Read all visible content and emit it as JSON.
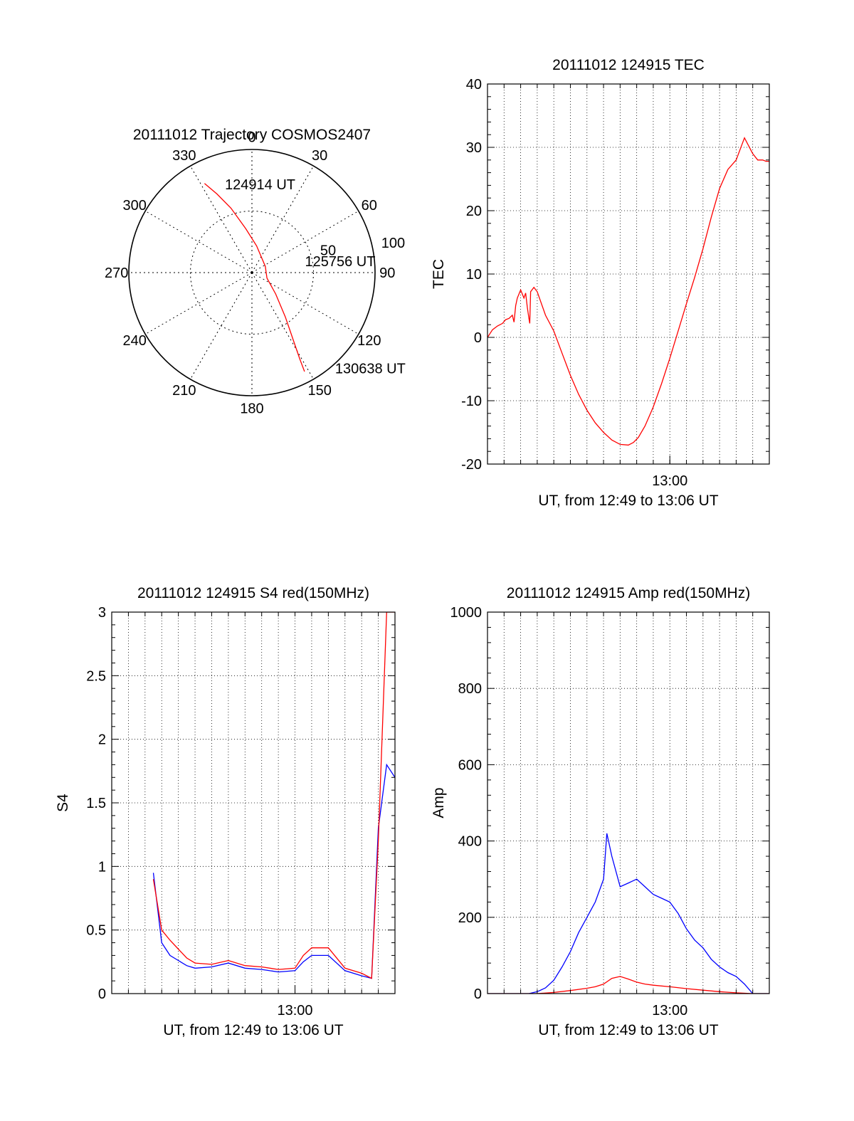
{
  "chart_data": [
    {
      "type": "polar",
      "title": "20111012 Trajectory COSMOS2407",
      "azimuth_labels": [
        "0",
        "30",
        "60",
        "90",
        "120",
        "150",
        "180",
        "210",
        "240",
        "270",
        "300",
        "330"
      ],
      "radial_labels": [
        "50",
        "100"
      ],
      "rmax": 100,
      "grid": true,
      "series": [
        {
          "color": "#ff0000",
          "points": [
            [
              332,
              82
            ],
            [
              336,
              70
            ],
            [
              342,
              55
            ],
            [
              352,
              36
            ],
            [
              10,
              22
            ],
            [
              65,
              12
            ],
            [
              110,
              13
            ],
            [
              132,
              26
            ],
            [
              143,
              45
            ],
            [
              148,
              62
            ],
            [
              151,
              80
            ],
            [
              152,
              91
            ]
          ]
        }
      ],
      "annotations": [
        {
          "text": "124914 UT",
          "az": 343,
          "r": 75
        },
        {
          "text": "125756 UT",
          "az": 78,
          "r": 44
        },
        {
          "text": "130638 UT",
          "az": 139,
          "r": 103
        }
      ]
    },
    {
      "type": "line",
      "title": "20111012 124915 TEC",
      "xlabel": "UT, from 12:49 to 13:06 UT",
      "ylabel": "TEC",
      "xlim": [
        0,
        17
      ],
      "ylim": [
        -20,
        40
      ],
      "yticks": [
        -20,
        -10,
        0,
        10,
        20,
        30,
        40
      ],
      "xticks": [
        {
          "value": 11,
          "label": "13:00"
        }
      ],
      "grid": true,
      "series": [
        {
          "color": "#ff0000",
          "x": [
            0,
            0.3,
            0.6,
            0.9,
            1.1,
            1.3,
            1.5,
            1.6,
            1.7,
            1.8,
            2.0,
            2.2,
            2.3,
            2.4,
            2.5,
            2.55,
            2.6,
            2.8,
            3.0,
            3.5,
            4,
            4.5,
            5,
            5.5,
            6,
            6.5,
            7,
            7.5,
            8,
            8.5,
            8.8,
            9.1,
            9.5,
            10,
            10.5,
            11,
            11.5,
            12,
            12.5,
            13,
            13.5,
            14,
            14.5,
            15,
            15.5,
            16,
            16.3,
            16.6,
            16.8,
            17
          ],
          "y": [
            0,
            1.2,
            1.8,
            2.2,
            2.8,
            3,
            3.5,
            2.4,
            5,
            6.2,
            7.5,
            6.2,
            7,
            4.8,
            3,
            2.2,
            7.2,
            7.9,
            7.2,
            3.5,
            1,
            -2.5,
            -6,
            -9,
            -11.5,
            -13.5,
            -15,
            -16.2,
            -16.9,
            -17,
            -16.6,
            -15.8,
            -14,
            -11,
            -7.3,
            -3.3,
            1,
            5.3,
            9.5,
            14,
            19,
            23.5,
            26.5,
            28,
            31.5,
            29,
            28,
            28,
            27.8,
            27.8
          ]
        }
      ]
    },
    {
      "type": "line",
      "title": "20111012 124915 S4 red(150MHz)",
      "xlabel": "UT, from 12:49 to 13:06 UT",
      "ylabel": "S4",
      "xlim": [
        0,
        17
      ],
      "ylim": [
        0,
        3
      ],
      "yticks": [
        0,
        0.5,
        1,
        1.5,
        2,
        2.5,
        3
      ],
      "ytick_labels": [
        "0",
        "0.5",
        "1",
        "1.5",
        "2",
        "2.5",
        "3"
      ],
      "xticks": [
        {
          "value": 11,
          "label": "13:00"
        }
      ],
      "grid": true,
      "series": [
        {
          "color": "#0000ff",
          "x": [
            2.5,
            3,
            3.5,
            4,
            4.5,
            5,
            6,
            7,
            8,
            9,
            10,
            11,
            11.5,
            12,
            13,
            14,
            15,
            15.6,
            16,
            16.5,
            17
          ],
          "y": [
            0.95,
            0.4,
            0.3,
            0.26,
            0.22,
            0.2,
            0.21,
            0.24,
            0.2,
            0.19,
            0.17,
            0.18,
            0.25,
            0.3,
            0.3,
            0.18,
            0.14,
            0.12,
            1.3,
            1.8,
            1.7
          ]
        },
        {
          "color": "#ff0000",
          "x": [
            2.5,
            3,
            3.5,
            4,
            4.5,
            5,
            6,
            7,
            8,
            9,
            10,
            11,
            11.5,
            12,
            13,
            14,
            15,
            15.6,
            16,
            16.5,
            17
          ],
          "y": [
            0.9,
            0.5,
            0.42,
            0.35,
            0.28,
            0.24,
            0.23,
            0.26,
            0.22,
            0.21,
            0.19,
            0.2,
            0.3,
            0.36,
            0.36,
            0.2,
            0.16,
            0.12,
            1.2,
            3,
            3
          ]
        }
      ]
    },
    {
      "type": "line",
      "title": "20111012 124915 Amp red(150MHz)",
      "xlabel": "UT, from 12:49 to 13:06 UT",
      "ylabel": "Amp",
      "xlim": [
        0,
        17
      ],
      "ylim": [
        0,
        1000
      ],
      "yticks": [
        0,
        200,
        400,
        600,
        800,
        1000
      ],
      "xticks": [
        {
          "value": 11,
          "label": "13:00"
        }
      ],
      "grid": true,
      "series": [
        {
          "color": "#0000ff",
          "x": [
            0,
            1,
            2,
            2.5,
            3,
            3.5,
            4,
            4.5,
            5,
            5.5,
            6,
            6.5,
            7,
            7.2,
            7.5,
            8,
            8.5,
            9,
            9.5,
            10,
            10.5,
            11,
            11.5,
            12,
            12.5,
            13,
            13.5,
            14,
            14.5,
            15,
            15.5,
            16,
            17
          ],
          "y": [
            0,
            0,
            0,
            0,
            5,
            15,
            35,
            70,
            110,
            160,
            200,
            240,
            300,
            420,
            360,
            280,
            290,
            300,
            280,
            260,
            250,
            240,
            210,
            170,
            140,
            120,
            90,
            70,
            55,
            45,
            25,
            0,
            0
          ]
        },
        {
          "color": "#ff0000",
          "x": [
            0,
            1,
            2,
            3,
            4,
            5,
            6,
            6.5,
            7,
            7.5,
            8,
            8.5,
            9,
            9.5,
            10,
            11,
            12,
            13,
            14,
            15,
            16,
            17
          ],
          "y": [
            0,
            0,
            0,
            0,
            3,
            8,
            14,
            18,
            25,
            40,
            45,
            38,
            30,
            25,
            22,
            18,
            13,
            9,
            5,
            2,
            0,
            0
          ]
        }
      ]
    }
  ]
}
